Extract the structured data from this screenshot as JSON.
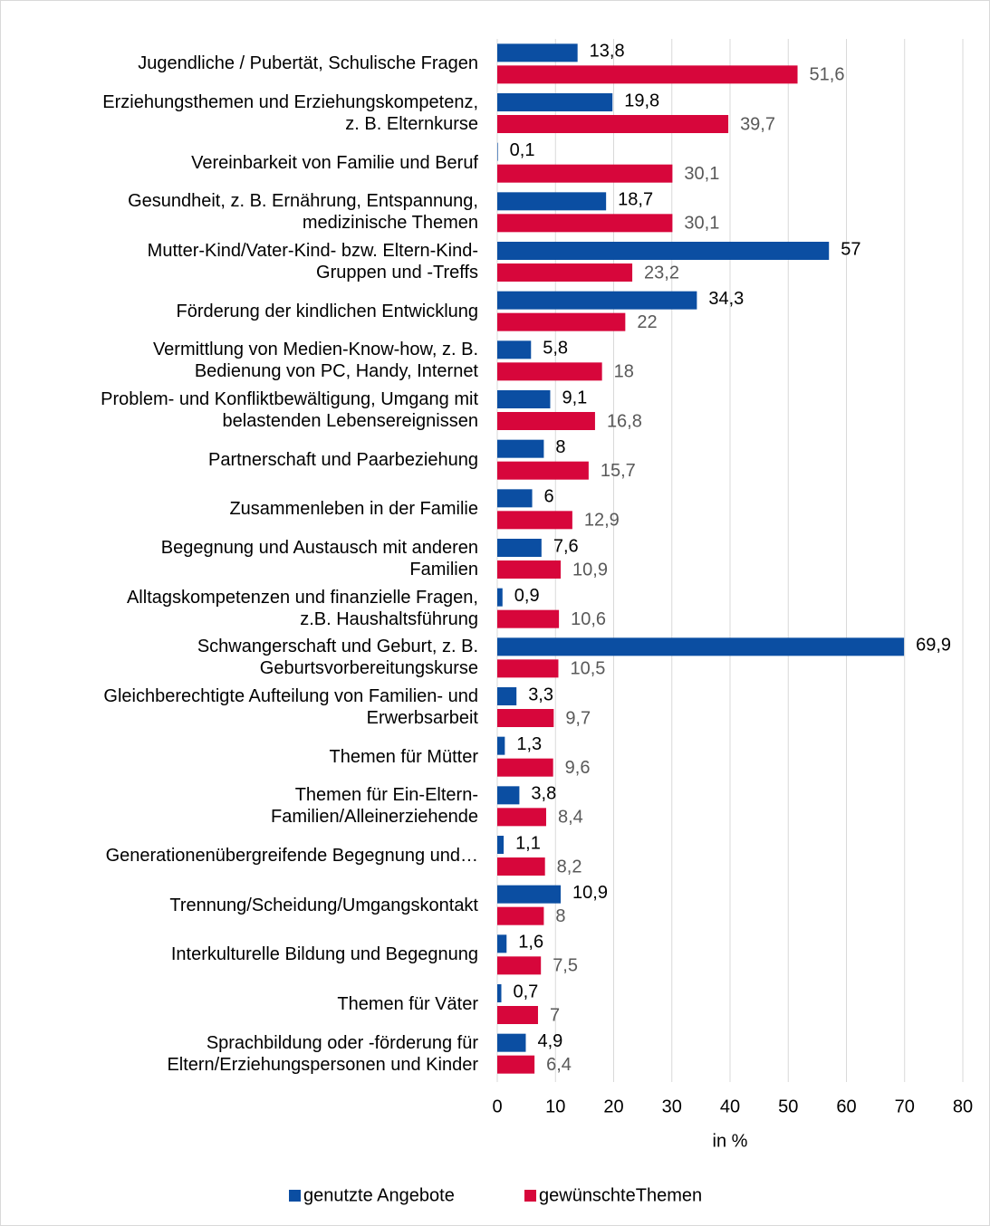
{
  "chart_data": {
    "type": "hbar",
    "categories": [
      "Jugendliche / Pubertät, Schulische Fragen",
      "Erziehungsthemen und Erziehungskompetenz,\nz. B. Elternkurse",
      "Vereinbarkeit von Familie und Beruf",
      "Gesundheit, z. B. Ernährung, Entspannung,\nmedizinische Themen",
      "Mutter-Kind/Vater-Kind- bzw. Eltern-Kind-\nGruppen und -Treffs",
      "Förderung der kindlichen Entwicklung",
      "Vermittlung von Medien-Know-how, z. B.\nBedienung von PC, Handy, Internet",
      "Problem- und Konfliktbewältigung, Umgang mit\nbelastenden Lebensereignissen",
      "Partnerschaft und Paarbeziehung",
      "Zusammenleben in der Familie",
      "Begegnung und Austausch mit anderen\nFamilien",
      "Alltagskompetenzen und finanzielle Fragen,\nz.B. Haushaltsführung",
      "Schwangerschaft und Geburt, z. B.\nGeburtsvorbereitungskurse",
      "Gleichberechtigte Aufteilung von Familien- und\nErwerbsarbeit",
      "Themen für Mütter",
      "Themen für Ein-Eltern-\nFamilien/Alleinerziehende",
      "Generationenübergreifende Begegnung und…",
      "Trennung/Scheidung/Umgangskontakt",
      "Interkulturelle Bildung und Begegnung",
      "Themen für Väter",
      "Sprachbildung oder -förderung für\nEltern/Erziehungspersonen und Kinder"
    ],
    "series": [
      {
        "name": "genutzte Angebote",
        "color": "#0b4ea2",
        "values": [
          13.8,
          19.8,
          0.1,
          18.7,
          57,
          34.3,
          5.8,
          9.1,
          8,
          6,
          7.6,
          0.9,
          69.9,
          3.3,
          1.3,
          3.8,
          1.1,
          10.9,
          1.6,
          0.7,
          4.9
        ],
        "value_labels": [
          "13,8",
          "19,8",
          "0,1",
          "18,7",
          "57",
          "34,3",
          "5,8",
          "9,1",
          "8",
          "6",
          "7,6",
          "0,9",
          "69,9",
          "3,3",
          "1,3",
          "3,8",
          "1,1",
          "10,9",
          "1,6",
          "0,7",
          "4,9"
        ]
      },
      {
        "name": "gewünschteThemen",
        "color": "#d7063b",
        "values": [
          51.6,
          39.7,
          30.1,
          30.1,
          23.2,
          22,
          18,
          16.8,
          15.7,
          12.9,
          10.9,
          10.6,
          10.5,
          9.7,
          9.6,
          8.4,
          8.2,
          8,
          7.5,
          7,
          6.4
        ],
        "value_labels": [
          "51,6",
          "39,7",
          "30,1",
          "30,1",
          "23,2",
          "22",
          "18",
          "16,8",
          "15,7",
          "12,9",
          "10,9",
          "10,6",
          "10,5",
          "9,7",
          "9,6",
          "8,4",
          "8,2",
          "8",
          "7,5",
          "7",
          "6,4"
        ]
      }
    ],
    "xlim": [
      0,
      80
    ],
    "xticks": [
      0,
      10,
      20,
      30,
      40,
      50,
      60,
      70,
      80
    ],
    "xlabel": "in %",
    "grid": true,
    "legend": "bottom"
  }
}
